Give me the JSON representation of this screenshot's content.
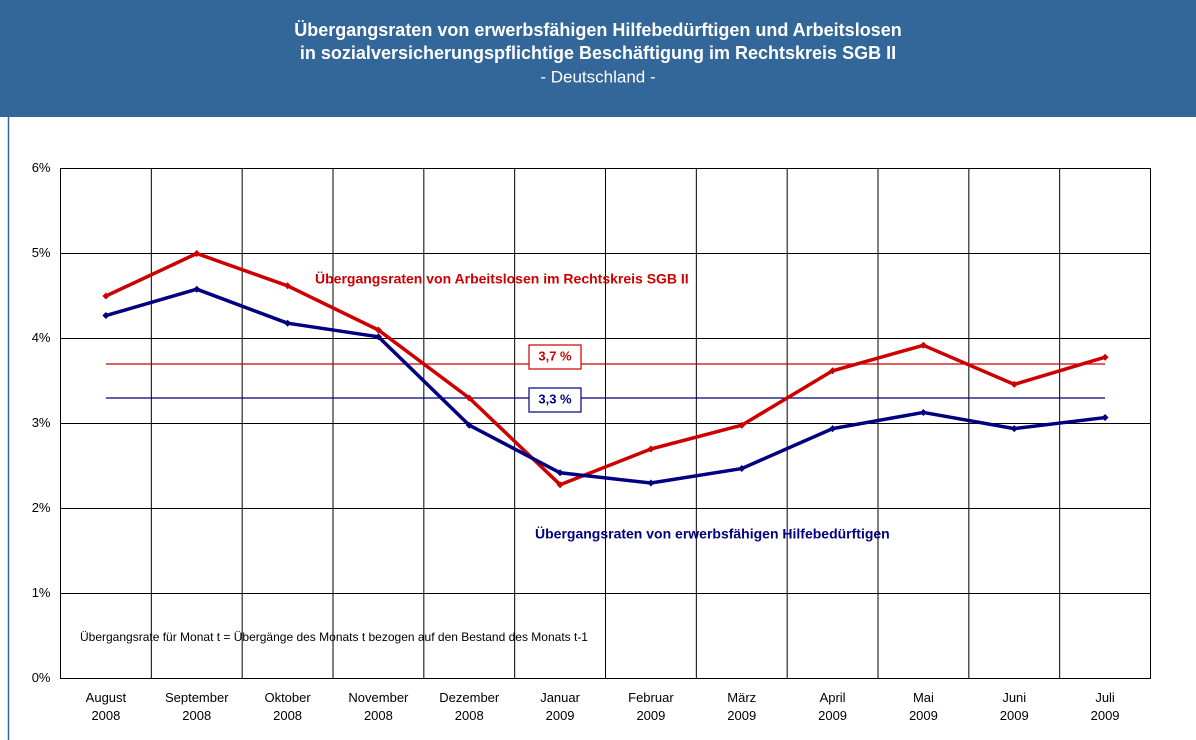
{
  "chart_data": {
    "type": "line",
    "title": [
      "Übergangsraten von erwerbsfähigen Hilfebedürftigen und Arbeitslosen",
      "in sozialversicherungspflichtige Beschäftigung im Rechtskreis SGB II"
    ],
    "subtitle": "- Deutschland -",
    "categories": [
      [
        "August",
        "2008"
      ],
      [
        "September",
        "2008"
      ],
      [
        "Oktober",
        "2008"
      ],
      [
        "November",
        "2008"
      ],
      [
        "Dezember",
        "2008"
      ],
      [
        "Januar",
        "2009"
      ],
      [
        "Februar",
        "2009"
      ],
      [
        "März",
        "2009"
      ],
      [
        "April",
        "2009"
      ],
      [
        "Mai",
        "2009"
      ],
      [
        "Juni",
        "2009"
      ],
      [
        "Juli",
        "2009"
      ]
    ],
    "series": [
      {
        "name": "Übergangsraten von Arbeitslosen im Rechtskreis SGB II",
        "color": "#cc0000",
        "values": [
          4.5,
          5.0,
          4.62,
          4.1,
          3.3,
          2.28,
          2.7,
          2.98,
          3.62,
          3.92,
          3.46,
          3.78
        ]
      },
      {
        "name": "Übergangsraten von erwerbsfähigen Hilfebedürftigen",
        "color": "#000080",
        "values": [
          4.27,
          4.58,
          4.18,
          4.02,
          2.98,
          2.42,
          2.3,
          2.47,
          2.94,
          3.13,
          2.94,
          3.07
        ]
      }
    ],
    "reference_lines": [
      {
        "value": 3.7,
        "label": "3,7 %",
        "color": "#cc0000"
      },
      {
        "value": 3.3,
        "label": "3,3 %",
        "color": "#000080"
      }
    ],
    "ylim": [
      0,
      6
    ],
    "yticks": [
      {
        "value": 0,
        "label": "0%"
      },
      {
        "value": 1,
        "label": "1%"
      },
      {
        "value": 2,
        "label": "2%"
      },
      {
        "value": 3,
        "label": "3%"
      },
      {
        "value": 4,
        "label": "4%"
      },
      {
        "value": 5,
        "label": "5%"
      },
      {
        "value": 6,
        "label": "6%"
      }
    ],
    "grid": true,
    "annotation": "Übergangsrate für Monat t = Übergänge des Monats t bezogen auf den Bestand des Monats t-1"
  }
}
